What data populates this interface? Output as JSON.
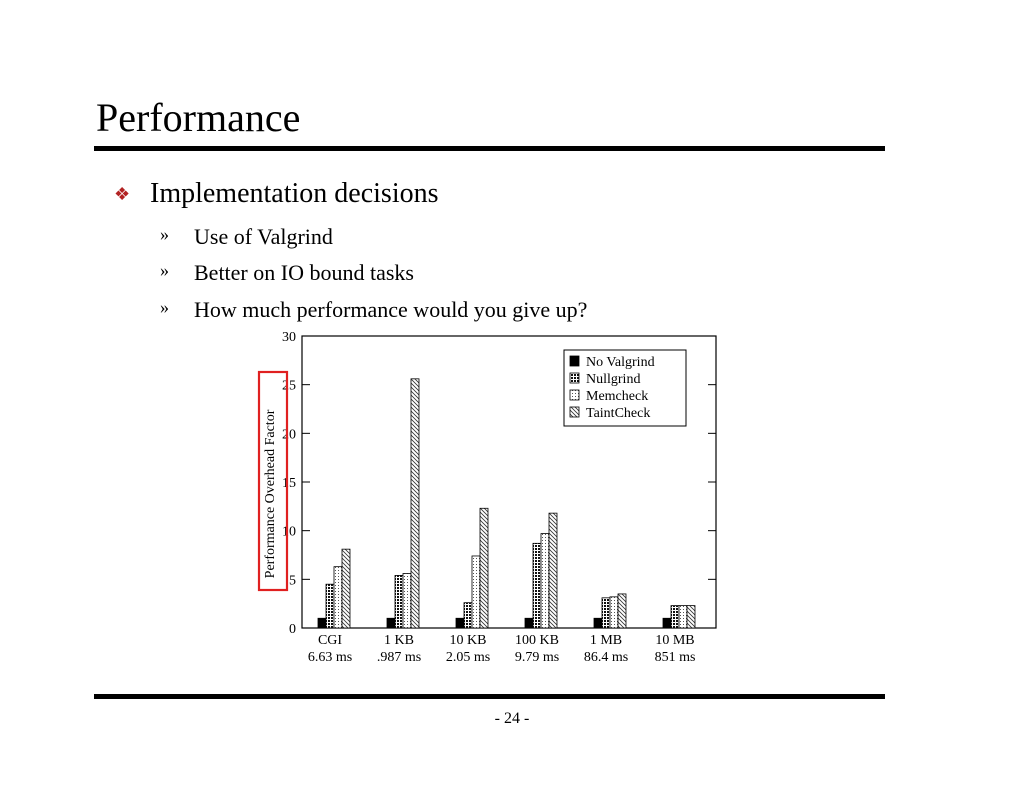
{
  "slide": {
    "title": "Performance",
    "bullet": "Implementation decisions",
    "sub_marker": "»",
    "sub_items": [
      "Use of Valgrind",
      "Better on IO bound tasks",
      "How much performance would you give up?"
    ],
    "page_number": "- 24 -"
  },
  "colors": {
    "bullet_icon": "#b22222",
    "highlight_box": "#e02020"
  },
  "chart_data": {
    "type": "bar",
    "ylabel": "Performance Overhead Factor",
    "ylim": [
      0,
      30
    ],
    "yticks": [
      0,
      5,
      10,
      15,
      20,
      25,
      30
    ],
    "categories": [
      {
        "name": "CGI",
        "time": "6.63 ms"
      },
      {
        "name": "1 KB",
        "time": ".987 ms"
      },
      {
        "name": "10 KB",
        "time": "2.05 ms"
      },
      {
        "name": "100 KB",
        "time": "9.79 ms"
      },
      {
        "name": "1 MB",
        "time": "86.4 ms"
      },
      {
        "name": "10 MB",
        "time": "851 ms"
      }
    ],
    "series": [
      {
        "name": "No Valgrind",
        "pattern": "solid",
        "values": [
          1,
          1,
          1,
          1,
          1,
          1
        ]
      },
      {
        "name": "Nullgrind",
        "pattern": "grid",
        "values": [
          4.5,
          5.4,
          2.6,
          8.7,
          3.1,
          2.3
        ]
      },
      {
        "name": "Memcheck",
        "pattern": "dots",
        "values": [
          6.3,
          5.6,
          7.4,
          9.7,
          3.2,
          2.3
        ]
      },
      {
        "name": "TaintCheck",
        "pattern": "diag",
        "values": [
          8.1,
          25.6,
          12.3,
          11.8,
          3.5,
          2.3
        ]
      }
    ],
    "legend_position": "top-right",
    "ylabel_highlighted": true
  }
}
